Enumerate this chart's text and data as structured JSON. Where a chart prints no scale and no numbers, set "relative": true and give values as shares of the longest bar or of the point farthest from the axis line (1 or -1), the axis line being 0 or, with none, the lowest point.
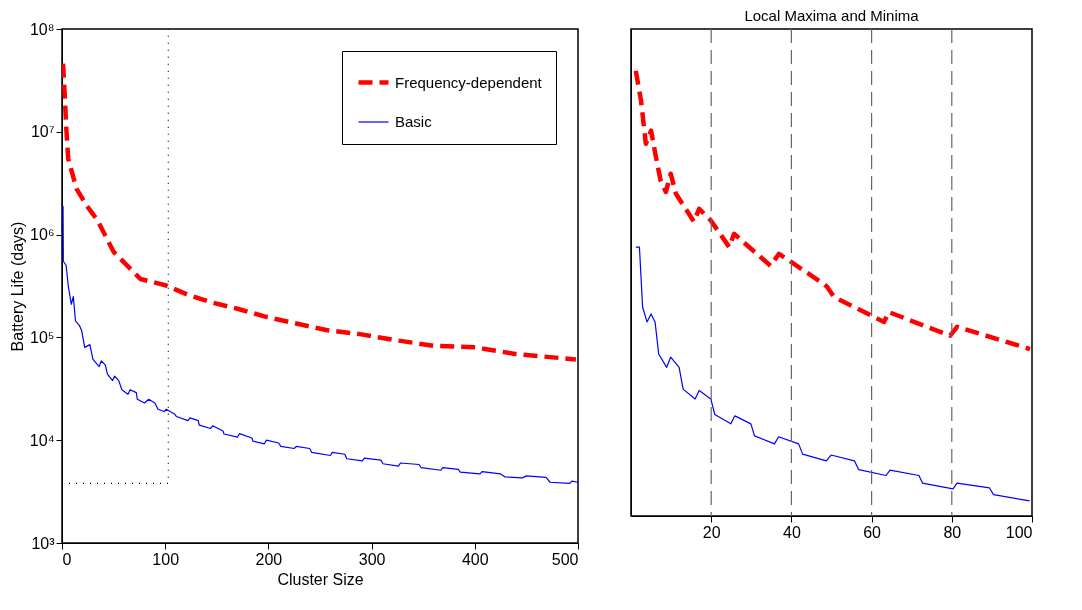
{
  "chart_data": [
    {
      "type": "line",
      "xlabel": "Cluster Size",
      "ylabel": "Battery Life (days)",
      "log": true,
      "grid": false,
      "legend": "top right",
      "xlim": [
        0,
        500
      ],
      "xticks": [
        0,
        100,
        200,
        300,
        400,
        500
      ],
      "ylim": [
        1000,
        100000000
      ],
      "yticks": [
        {
          "value": 1000,
          "label": "10³"
        },
        {
          "value": 10000,
          "label": "10⁴"
        },
        {
          "value": 100000,
          "label": "10⁵"
        },
        {
          "value": 1000000,
          "label": "10⁶"
        },
        {
          "value": 10000000,
          "label": "10⁷"
        },
        {
          "value": 100000000,
          "label": "10⁸"
        }
      ],
      "series": [
        {
          "name": "Frequency-dependent",
          "color": "#ff0000",
          "line_style": "dashed",
          "x": [
            1,
            3,
            4,
            6,
            14,
            24,
            34,
            50,
            76,
            101,
            122,
            144,
            170,
            196,
            222,
            256,
            290,
            323,
            360,
            401,
            439,
            498
          ],
          "values": [
            46000000,
            19500000,
            11500000,
            5500000,
            2800000,
            1900000,
            1400000,
            680000,
            370000,
            320000,
            260000,
            220000,
            190000,
            160000,
            140000,
            118000,
            107000,
            94000,
            83000,
            80000,
            69000,
            61000
          ]
        },
        {
          "name": "Basic",
          "color": "#0000ff",
          "line_style": "solid",
          "x": [
            1,
            1.3,
            4,
            6,
            9,
            11,
            13,
            17,
            19,
            22,
            27,
            30,
            36,
            38,
            42,
            44,
            49,
            51,
            55,
            58,
            64,
            66,
            72,
            73,
            80,
            84,
            90,
            93,
            99,
            101,
            109,
            111,
            122,
            124,
            132,
            133,
            144,
            146,
            156,
            157,
            170,
            172,
            184,
            185,
            196,
            198,
            210,
            212,
            225,
            227,
            240,
            242,
            260,
            262,
            274,
            276,
            291,
            293,
            309,
            311,
            326,
            328,
            346,
            348,
            367,
            369,
            384,
            386,
            405,
            407,
            425,
            429,
            446,
            450,
            469,
            473,
            492,
            494,
            500
          ],
          "values": [
            1900000,
            550000,
            500000,
            320000,
            210000,
            250000,
            145000,
            130000,
            117000,
            80000,
            85000,
            61000,
            52000,
            59000,
            54000,
            44000,
            38000,
            42000,
            38000,
            31000,
            28000,
            31000,
            29000,
            25000,
            23000,
            25000,
            23000,
            20000,
            19000,
            20000,
            18000,
            17000,
            15500,
            16500,
            15500,
            14000,
            13000,
            13800,
            12300,
            11500,
            10700,
            11600,
            10500,
            9800,
            9200,
            10000,
            9400,
            8700,
            8300,
            8700,
            8300,
            7600,
            7100,
            7600,
            7300,
            6600,
            6300,
            6700,
            6400,
            5900,
            5600,
            6000,
            5800,
            5400,
            5100,
            5400,
            5200,
            4900,
            4700,
            4950,
            4700,
            4400,
            4300,
            4500,
            4350,
            3900,
            3800,
            4000,
            3900
          ]
        },
        {
          "color": "#000000",
          "line_style": "dotted",
          "x": [
            0,
            103,
            103
          ],
          "values": [
            3800,
            3800,
            100000000
          ]
        }
      ]
    },
    {
      "type": "line",
      "title": "Local Maxima and Minima",
      "relative": true,
      "grid": false,
      "tick_labels": "x",
      "xlim": [
        0,
        100
      ],
      "xticks": [
        20,
        40,
        60,
        80,
        100
      ],
      "ref_lines": [
        {
          "axis": "x",
          "value": 20,
          "color": "#666666",
          "line_style": "dashed"
        },
        {
          "axis": "x",
          "value": 40,
          "color": "#666666",
          "line_style": "dashed"
        },
        {
          "axis": "x",
          "value": 60,
          "color": "#666666",
          "line_style": "dashed"
        },
        {
          "axis": "x",
          "value": 80,
          "color": "#666666",
          "line_style": "dashed"
        }
      ],
      "series": [
        {
          "color": "#ff0000",
          "line_style": "dashed",
          "x": [
            1.2,
            2.5,
            3.7,
            5,
            6.2,
            7.4,
            8.7,
            9.9,
            11.2,
            15.7,
            17,
            19.9,
            24.5,
            25.7,
            34.8,
            36.9,
            48.1,
            48.9,
            50.6,
            63.1,
            64.3,
            79.6,
            81.3,
            99.5
          ],
          "values": [
            1.0,
            0.933,
            0.836,
            0.866,
            0.807,
            0.753,
            0.728,
            0.769,
            0.724,
            0.661,
            0.69,
            0.664,
            0.604,
            0.634,
            0.562,
            0.589,
            0.521,
            0.515,
            0.492,
            0.436,
            0.458,
            0.405,
            0.425,
            0.375
          ]
        },
        {
          "color": "#0000ff",
          "line_style": "solid",
          "x": [
            1.2,
            2.1,
            2.9,
            4,
            5,
            6,
            6.9,
            8.9,
            9.9,
            12,
            13,
            16,
            17,
            19.9,
            20.9,
            24.9,
            25.9,
            29.9,
            30.8,
            35.8,
            36.8,
            41.8,
            42.8,
            48.7,
            49.9,
            55.7,
            56.8,
            63.6,
            64.6,
            71.8,
            72.7,
            80.3,
            81.3,
            89.4,
            90.4,
            99.4
          ],
          "values": [
            0.604,
            0.604,
            0.469,
            0.436,
            0.454,
            0.436,
            0.364,
            0.334,
            0.357,
            0.334,
            0.285,
            0.263,
            0.282,
            0.263,
            0.228,
            0.207,
            0.225,
            0.207,
            0.18,
            0.162,
            0.178,
            0.162,
            0.139,
            0.124,
            0.137,
            0.124,
            0.104,
            0.091,
            0.103,
            0.091,
            0.074,
            0.061,
            0.074,
            0.063,
            0.048,
            0.034
          ]
        }
      ]
    }
  ]
}
